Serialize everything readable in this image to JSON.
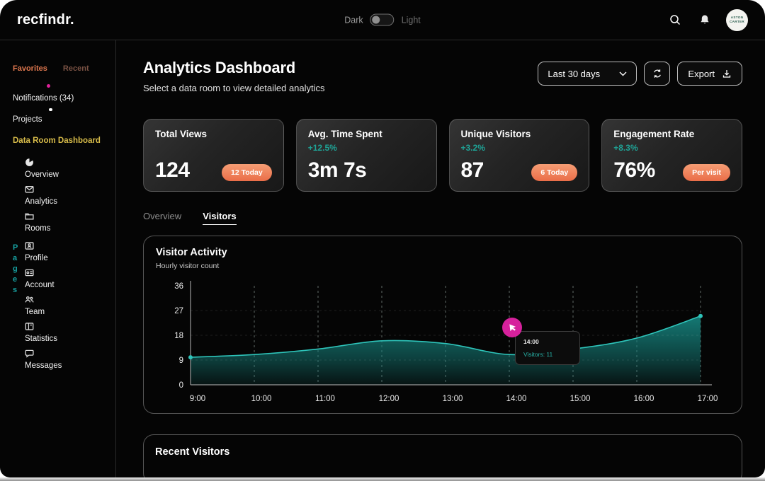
{
  "brand": "recfindr.",
  "topbar": {
    "theme_toggle": {
      "dark_label": "Dark",
      "light_label": "Light",
      "state": "dark"
    },
    "icons": [
      "search-icon",
      "bell-icon"
    ],
    "avatar_line1": "ASTON",
    "avatar_line2": "CARTER"
  },
  "sidebar": {
    "tabs": [
      {
        "label": "Favorites",
        "active": true
      },
      {
        "label": "Recent",
        "active": false
      }
    ],
    "notifications_label": "Notifications (34)",
    "projects_label": "Projects",
    "data_room_label": "Data Room Dashboard",
    "nav_primary": [
      {
        "label": "Overview",
        "icon": "pie-chart-icon"
      },
      {
        "label": "Analytics",
        "icon": "envelope-icon"
      },
      {
        "label": "Rooms",
        "icon": "folder-icon"
      }
    ],
    "pages_heading": "Pages",
    "nav_pages": [
      {
        "label": "Profile",
        "icon": "contact-card-icon"
      },
      {
        "label": "Account",
        "icon": "id-badge-icon"
      },
      {
        "label": "Team",
        "icon": "people-icon"
      },
      {
        "label": "Statistics",
        "icon": "kanban-icon"
      },
      {
        "label": "Messages",
        "icon": "chat-bubble-icon"
      }
    ]
  },
  "header": {
    "title": "Analytics Dashboard",
    "subtitle": "Select a data room to view detailed analytics",
    "range_selector_value": "Last 30 days",
    "refresh_icon": "refresh-icon",
    "export_label": "Export"
  },
  "stats": [
    {
      "title": "Total Views",
      "change": "",
      "value": "124",
      "badge": "12 Today"
    },
    {
      "title": "Avg. Time Spent",
      "change": "+12.5%",
      "value": "3m 7s",
      "badge": ""
    },
    {
      "title": "Unique Visitors",
      "change": "+3.2%",
      "value": "87",
      "badge": "6 Today"
    },
    {
      "title": "Engagement Rate",
      "change": "+8.3%",
      "value": "76%",
      "badge": "Per visit"
    }
  ],
  "tabs": [
    {
      "label": "Overview",
      "active": false
    },
    {
      "label": "Visitors",
      "active": true
    }
  ],
  "chart_data": {
    "type": "area",
    "title": "Visitor Activity",
    "subtitle": "Hourly visitor count",
    "x": [
      "9:00",
      "10:00",
      "11:00",
      "12:00",
      "13:00",
      "14:00",
      "15:00",
      "16:00",
      "17:00"
    ],
    "values": [
      10,
      11,
      13,
      16,
      15,
      11,
      13,
      17,
      25
    ],
    "yticks": [
      0,
      9,
      18,
      27,
      36
    ],
    "ylim": [
      0,
      36
    ],
    "grid": "vertical-dashed",
    "legend": "none",
    "line_color": "#2ec4ba",
    "fill_color": "#157f7a",
    "cursor_color": "#d6219c",
    "tooltip": {
      "label": "14:00",
      "value_text": "Visitors: 11",
      "x_index": 5
    }
  },
  "recent": {
    "title": "Recent Visitors"
  },
  "colors": {
    "background": "#050505",
    "accent_orange": "#e8764f",
    "accent_teal": "#1fa79e",
    "accent_pink": "#e0219a",
    "accent_gold": "#d8bc4a",
    "badge_gradient": [
      "#f59d74",
      "#ea6d48"
    ]
  }
}
